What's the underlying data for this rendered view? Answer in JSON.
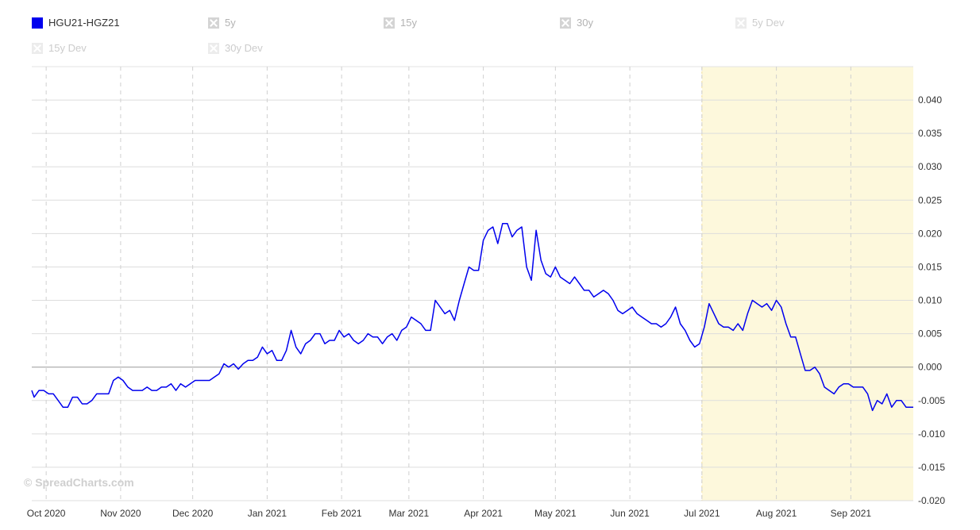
{
  "legend": {
    "items": [
      {
        "label": "HGU21-HGZ21",
        "state": "active"
      },
      {
        "label": "5y",
        "state": "inactive"
      },
      {
        "label": "15y",
        "state": "inactive"
      },
      {
        "label": "30y",
        "state": "inactive"
      },
      {
        "label": "5y Dev",
        "state": "faint"
      },
      {
        "label": "15y Dev",
        "state": "faint"
      },
      {
        "label": "30y Dev",
        "state": "faint"
      }
    ]
  },
  "watermark": "© SpreadCharts.com",
  "colors": {
    "series": "#0000ee",
    "highlight": "#fdf8dc",
    "grid": "#dddddd",
    "zero": "#999999"
  },
  "chart_data": {
    "type": "line",
    "x_start": "2020-09-25",
    "x_end": "2021-09-27",
    "ylim": [
      -0.02,
      0.045
    ],
    "grid": true,
    "highlight_range": [
      "2021-07-01",
      "2021-09-27"
    ],
    "x_ticks": [
      {
        "label": "Oct 2020",
        "date": "2020-10-01"
      },
      {
        "label": "Nov 2020",
        "date": "2020-11-01"
      },
      {
        "label": "Dec 2020",
        "date": "2020-12-01"
      },
      {
        "label": "Jan 2021",
        "date": "2021-01-01"
      },
      {
        "label": "Feb 2021",
        "date": "2021-02-01"
      },
      {
        "label": "Mar 2021",
        "date": "2021-03-01"
      },
      {
        "label": "Apr 2021",
        "date": "2021-04-01"
      },
      {
        "label": "May 2021",
        "date": "2021-05-01"
      },
      {
        "label": "Jun 2021",
        "date": "2021-06-01"
      },
      {
        "label": "Jul 2021",
        "date": "2021-07-01"
      },
      {
        "label": "Aug 2021",
        "date": "2021-08-01"
      },
      {
        "label": "Sep 2021",
        "date": "2021-09-01"
      }
    ],
    "y_ticks": [
      {
        "label": "0.040",
        "value": 0.04
      },
      {
        "label": "0.035",
        "value": 0.035
      },
      {
        "label": "0.030",
        "value": 0.03
      },
      {
        "label": "0.025",
        "value": 0.025
      },
      {
        "label": "0.020",
        "value": 0.02
      },
      {
        "label": "0.015",
        "value": 0.015
      },
      {
        "label": "0.010",
        "value": 0.01
      },
      {
        "label": "0.005",
        "value": 0.005
      },
      {
        "label": "0.000",
        "value": 0.0
      },
      {
        "label": "-0.005",
        "value": -0.005
      },
      {
        "label": "-0.010",
        "value": -0.01
      },
      {
        "label": "-0.015",
        "value": -0.015
      },
      {
        "label": "-0.020",
        "value": -0.02
      }
    ],
    "series": [
      {
        "name": "HGU21-HGZ21",
        "points": [
          [
            "2020-09-25",
            -0.0035
          ],
          [
            "2020-09-26",
            -0.0045
          ],
          [
            "2020-09-28",
            -0.0035
          ],
          [
            "2020-09-30",
            -0.0035
          ],
          [
            "2020-10-02",
            -0.004
          ],
          [
            "2020-10-04",
            -0.004
          ],
          [
            "2020-10-06",
            -0.005
          ],
          [
            "2020-10-08",
            -0.006
          ],
          [
            "2020-10-10",
            -0.006
          ],
          [
            "2020-10-12",
            -0.0045
          ],
          [
            "2020-10-14",
            -0.0045
          ],
          [
            "2020-10-16",
            -0.0055
          ],
          [
            "2020-10-18",
            -0.0055
          ],
          [
            "2020-10-20",
            -0.005
          ],
          [
            "2020-10-22",
            -0.004
          ],
          [
            "2020-10-25",
            -0.004
          ],
          [
            "2020-10-27",
            -0.004
          ],
          [
            "2020-10-29",
            -0.002
          ],
          [
            "2020-10-31",
            -0.0015
          ],
          [
            "2020-11-02",
            -0.002
          ],
          [
            "2020-11-04",
            -0.003
          ],
          [
            "2020-11-06",
            -0.0035
          ],
          [
            "2020-11-08",
            -0.0035
          ],
          [
            "2020-11-10",
            -0.0035
          ],
          [
            "2020-11-12",
            -0.003
          ],
          [
            "2020-11-14",
            -0.0035
          ],
          [
            "2020-11-16",
            -0.0035
          ],
          [
            "2020-11-18",
            -0.003
          ],
          [
            "2020-11-20",
            -0.003
          ],
          [
            "2020-11-22",
            -0.0025
          ],
          [
            "2020-11-24",
            -0.0035
          ],
          [
            "2020-11-26",
            -0.0025
          ],
          [
            "2020-11-28",
            -0.003
          ],
          [
            "2020-11-30",
            -0.0025
          ],
          [
            "2020-12-02",
            -0.002
          ],
          [
            "2020-12-04",
            -0.002
          ],
          [
            "2020-12-06",
            -0.002
          ],
          [
            "2020-12-08",
            -0.002
          ],
          [
            "2020-12-10",
            -0.0015
          ],
          [
            "2020-12-12",
            -0.001
          ],
          [
            "2020-12-14",
            0.0005
          ],
          [
            "2020-12-16",
            0.0
          ],
          [
            "2020-12-18",
            0.0005
          ],
          [
            "2020-12-20",
            -0.0003
          ],
          [
            "2020-12-22",
            0.0005
          ],
          [
            "2020-12-24",
            0.001
          ],
          [
            "2020-12-26",
            0.001
          ],
          [
            "2020-12-28",
            0.0015
          ],
          [
            "2020-12-30",
            0.003
          ],
          [
            "2021-01-01",
            0.002
          ],
          [
            "2021-01-03",
            0.0025
          ],
          [
            "2021-01-05",
            0.001
          ],
          [
            "2021-01-07",
            0.001
          ],
          [
            "2021-01-09",
            0.0025
          ],
          [
            "2021-01-11",
            0.0055
          ],
          [
            "2021-01-13",
            0.003
          ],
          [
            "2021-01-15",
            0.002
          ],
          [
            "2021-01-17",
            0.0035
          ],
          [
            "2021-01-19",
            0.004
          ],
          [
            "2021-01-21",
            0.005
          ],
          [
            "2021-01-23",
            0.005
          ],
          [
            "2021-01-25",
            0.0035
          ],
          [
            "2021-01-27",
            0.004
          ],
          [
            "2021-01-29",
            0.004
          ],
          [
            "2021-01-31",
            0.0055
          ],
          [
            "2021-02-02",
            0.0045
          ],
          [
            "2021-02-04",
            0.005
          ],
          [
            "2021-02-06",
            0.004
          ],
          [
            "2021-02-08",
            0.0035
          ],
          [
            "2021-02-10",
            0.004
          ],
          [
            "2021-02-12",
            0.005
          ],
          [
            "2021-02-14",
            0.0045
          ],
          [
            "2021-02-16",
            0.0045
          ],
          [
            "2021-02-18",
            0.0035
          ],
          [
            "2021-02-20",
            0.0045
          ],
          [
            "2021-02-22",
            0.005
          ],
          [
            "2021-02-24",
            0.004
          ],
          [
            "2021-02-26",
            0.0055
          ],
          [
            "2021-02-28",
            0.006
          ],
          [
            "2021-03-02",
            0.0075
          ],
          [
            "2021-03-04",
            0.007
          ],
          [
            "2021-03-06",
            0.0065
          ],
          [
            "2021-03-08",
            0.0055
          ],
          [
            "2021-03-10",
            0.0055
          ],
          [
            "2021-03-12",
            0.01
          ],
          [
            "2021-03-14",
            0.009
          ],
          [
            "2021-03-16",
            0.008
          ],
          [
            "2021-03-18",
            0.0085
          ],
          [
            "2021-03-20",
            0.007
          ],
          [
            "2021-03-22",
            0.01
          ],
          [
            "2021-03-24",
            0.0125
          ],
          [
            "2021-03-26",
            0.015
          ],
          [
            "2021-03-28",
            0.0145
          ],
          [
            "2021-03-30",
            0.0145
          ],
          [
            "2021-04-01",
            0.019
          ],
          [
            "2021-04-03",
            0.0205
          ],
          [
            "2021-04-05",
            0.021
          ],
          [
            "2021-04-07",
            0.0185
          ],
          [
            "2021-04-09",
            0.0215
          ],
          [
            "2021-04-11",
            0.0215
          ],
          [
            "2021-04-13",
            0.0195
          ],
          [
            "2021-04-15",
            0.0205
          ],
          [
            "2021-04-17",
            0.021
          ],
          [
            "2021-04-19",
            0.015
          ],
          [
            "2021-04-21",
            0.013
          ],
          [
            "2021-04-23",
            0.0205
          ],
          [
            "2021-04-25",
            0.016
          ],
          [
            "2021-04-27",
            0.014
          ],
          [
            "2021-04-29",
            0.0135
          ],
          [
            "2021-05-01",
            0.015
          ],
          [
            "2021-05-03",
            0.0135
          ],
          [
            "2021-05-05",
            0.013
          ],
          [
            "2021-05-07",
            0.0125
          ],
          [
            "2021-05-09",
            0.0135
          ],
          [
            "2021-05-11",
            0.0125
          ],
          [
            "2021-05-13",
            0.0115
          ],
          [
            "2021-05-15",
            0.0115
          ],
          [
            "2021-05-17",
            0.0105
          ],
          [
            "2021-05-19",
            0.011
          ],
          [
            "2021-05-21",
            0.0115
          ],
          [
            "2021-05-23",
            0.011
          ],
          [
            "2021-05-25",
            0.01
          ],
          [
            "2021-05-27",
            0.0085
          ],
          [
            "2021-05-29",
            0.008
          ],
          [
            "2021-05-31",
            0.0085
          ],
          [
            "2021-06-02",
            0.009
          ],
          [
            "2021-06-04",
            0.008
          ],
          [
            "2021-06-06",
            0.0075
          ],
          [
            "2021-06-08",
            0.007
          ],
          [
            "2021-06-10",
            0.0065
          ],
          [
            "2021-06-12",
            0.0065
          ],
          [
            "2021-06-14",
            0.006
          ],
          [
            "2021-06-16",
            0.0065
          ],
          [
            "2021-06-18",
            0.0075
          ],
          [
            "2021-06-20",
            0.009
          ],
          [
            "2021-06-22",
            0.0065
          ],
          [
            "2021-06-24",
            0.0055
          ],
          [
            "2021-06-26",
            0.004
          ],
          [
            "2021-06-28",
            0.003
          ],
          [
            "2021-06-30",
            0.0035
          ],
          [
            "2021-07-02",
            0.006
          ],
          [
            "2021-07-04",
            0.0095
          ],
          [
            "2021-07-06",
            0.008
          ],
          [
            "2021-07-08",
            0.0065
          ],
          [
            "2021-07-10",
            0.006
          ],
          [
            "2021-07-12",
            0.006
          ],
          [
            "2021-07-14",
            0.0055
          ],
          [
            "2021-07-16",
            0.0065
          ],
          [
            "2021-07-18",
            0.0055
          ],
          [
            "2021-07-20",
            0.008
          ],
          [
            "2021-07-22",
            0.01
          ],
          [
            "2021-07-24",
            0.0095
          ],
          [
            "2021-07-26",
            0.009
          ],
          [
            "2021-07-28",
            0.0095
          ],
          [
            "2021-07-30",
            0.0085
          ],
          [
            "2021-08-01",
            0.01
          ],
          [
            "2021-08-03",
            0.009
          ],
          [
            "2021-08-05",
            0.0065
          ],
          [
            "2021-08-07",
            0.0045
          ],
          [
            "2021-08-09",
            0.0045
          ],
          [
            "2021-08-11",
            0.002
          ],
          [
            "2021-08-13",
            -0.0005
          ],
          [
            "2021-08-15",
            -0.0005
          ],
          [
            "2021-08-17",
            0.0
          ],
          [
            "2021-08-19",
            -0.001
          ],
          [
            "2021-08-21",
            -0.003
          ],
          [
            "2021-08-23",
            -0.0035
          ],
          [
            "2021-08-25",
            -0.004
          ],
          [
            "2021-08-27",
            -0.003
          ],
          [
            "2021-08-29",
            -0.0025
          ],
          [
            "2021-08-31",
            -0.0025
          ],
          [
            "2021-09-02",
            -0.003
          ],
          [
            "2021-09-04",
            -0.003
          ],
          [
            "2021-09-06",
            -0.003
          ],
          [
            "2021-09-08",
            -0.004
          ],
          [
            "2021-09-10",
            -0.0065
          ],
          [
            "2021-09-12",
            -0.005
          ],
          [
            "2021-09-14",
            -0.0055
          ],
          [
            "2021-09-16",
            -0.004
          ],
          [
            "2021-09-18",
            -0.006
          ],
          [
            "2021-09-20",
            -0.005
          ],
          [
            "2021-09-22",
            -0.005
          ],
          [
            "2021-09-24",
            -0.006
          ],
          [
            "2021-09-26",
            -0.006
          ],
          [
            "2021-09-27",
            -0.006
          ]
        ]
      }
    ]
  }
}
